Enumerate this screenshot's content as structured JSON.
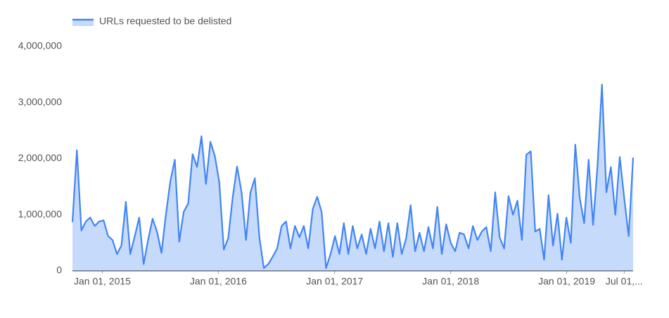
{
  "chart_data": {
    "type": "area",
    "series": [
      {
        "name": "URLs requested to be delisted",
        "color": "#4285f4",
        "fill": "#c6dafc",
        "values": [
          870000,
          2150000,
          720000,
          880000,
          950000,
          800000,
          880000,
          900000,
          620000,
          550000,
          300000,
          450000,
          1230000,
          300000,
          620000,
          950000,
          120000,
          550000,
          930000,
          700000,
          320000,
          1000000,
          1600000,
          1980000,
          520000,
          1050000,
          1200000,
          2080000,
          1850000,
          2400000,
          1550000,
          2300000,
          2050000,
          1580000,
          380000,
          580000,
          1300000,
          1860000,
          1400000,
          550000,
          1400000,
          1650000,
          600000,
          50000,
          120000,
          250000,
          400000,
          800000,
          880000,
          400000,
          800000,
          600000,
          800000,
          400000,
          1100000,
          1320000,
          1050000,
          50000,
          300000,
          620000,
          300000,
          850000,
          300000,
          800000,
          400000,
          650000,
          300000,
          750000,
          400000,
          880000,
          350000,
          850000,
          250000,
          850000,
          300000,
          580000,
          1170000,
          350000,
          680000,
          350000,
          780000,
          400000,
          1140000,
          300000,
          830000,
          500000,
          350000,
          680000,
          650000,
          400000,
          800000,
          550000,
          700000,
          780000,
          350000,
          1400000,
          600000,
          400000,
          1330000,
          1000000,
          1250000,
          550000,
          2070000,
          2130000,
          700000,
          750000,
          200000,
          1350000,
          450000,
          1020000,
          200000,
          950000,
          500000,
          2250000,
          1300000,
          850000,
          1980000,
          820000,
          1880000,
          3320000,
          1400000,
          1850000,
          1000000,
          2030000,
          1300000,
          620000,
          2020000
        ]
      }
    ],
    "x": [
      "2014-09-29",
      "2014-10-13",
      "2014-10-27",
      "2014-11-10",
      "2014-11-24",
      "2014-12-08",
      "2014-12-22",
      "2015-01-05",
      "2015-01-19",
      "2015-02-02",
      "2015-02-16",
      "2015-03-02",
      "2015-03-16",
      "2015-03-30",
      "2015-04-13",
      "2015-04-27",
      "2015-05-11",
      "2015-05-25",
      "2015-06-08",
      "2015-06-22",
      "2015-07-06",
      "2015-07-20",
      "2015-08-03",
      "2015-08-17",
      "2015-08-31",
      "2015-09-14",
      "2015-09-28",
      "2015-10-12",
      "2015-10-26",
      "2015-11-09",
      "2015-11-23",
      "2015-12-07",
      "2015-12-21",
      "2016-01-04",
      "2016-01-18",
      "2016-02-01",
      "2016-02-15",
      "2016-02-29",
      "2016-03-14",
      "2016-03-28",
      "2016-04-11",
      "2016-04-25",
      "2016-05-09",
      "2016-05-23",
      "2016-06-06",
      "2016-06-20",
      "2016-07-04",
      "2016-07-18",
      "2016-08-01",
      "2016-08-15",
      "2016-08-29",
      "2016-09-12",
      "2016-09-26",
      "2016-10-10",
      "2016-10-24",
      "2016-11-07",
      "2016-11-21",
      "2016-12-05",
      "2016-12-19",
      "2017-01-02",
      "2017-01-16",
      "2017-01-30",
      "2017-02-13",
      "2017-02-27",
      "2017-03-13",
      "2017-03-27",
      "2017-04-10",
      "2017-04-24",
      "2017-05-08",
      "2017-05-22",
      "2017-06-05",
      "2017-06-19",
      "2017-07-03",
      "2017-07-17",
      "2017-07-31",
      "2017-08-14",
      "2017-08-28",
      "2017-09-11",
      "2017-09-25",
      "2017-10-09",
      "2017-10-23",
      "2017-11-06",
      "2017-11-20",
      "2017-12-04",
      "2017-12-18",
      "2018-01-01",
      "2018-01-15",
      "2018-01-29",
      "2018-02-12",
      "2018-02-26",
      "2018-03-12",
      "2018-03-26",
      "2018-04-09",
      "2018-04-23",
      "2018-05-07",
      "2018-05-21",
      "2018-06-04",
      "2018-06-18",
      "2018-07-02",
      "2018-07-16",
      "2018-07-30",
      "2018-08-13",
      "2018-08-27",
      "2018-09-10",
      "2018-09-24",
      "2018-10-08",
      "2018-10-22",
      "2018-11-05",
      "2018-11-19",
      "2018-12-03",
      "2018-12-17",
      "2018-12-31",
      "2019-01-14",
      "2019-01-28",
      "2019-02-11",
      "2019-02-25",
      "2019-03-11",
      "2019-03-25",
      "2019-04-08",
      "2019-04-22",
      "2019-05-06",
      "2019-05-20",
      "2019-06-03",
      "2019-06-17",
      "2019-07-01",
      "2019-07-15",
      "2019-07-29"
    ],
    "xlim": [
      "2014-09-29",
      "2019-07-29"
    ],
    "xticks": [
      {
        "value": "2015-01-01",
        "label": "Jan 01, 2015"
      },
      {
        "value": "2016-01-01",
        "label": "Jan 01, 2016"
      },
      {
        "value": "2017-01-01",
        "label": "Jan 01, 2017"
      },
      {
        "value": "2018-01-01",
        "label": "Jan 01, 2018"
      },
      {
        "value": "2019-01-01",
        "label": "Jan 01, 2019"
      },
      {
        "value": "2019-07-01",
        "label": "Jul 01,..."
      }
    ],
    "ylim": [
      0,
      4000000
    ],
    "yticks": [
      0,
      {
        "value": 1000000,
        "label": "1,000,000"
      },
      {
        "value": 2000000,
        "label": "2,000,000"
      },
      {
        "value": 3000000,
        "label": "3,000,000"
      },
      {
        "value": 4000000,
        "label": "4,000,000"
      }
    ],
    "grid": false,
    "legend": "top-left"
  }
}
